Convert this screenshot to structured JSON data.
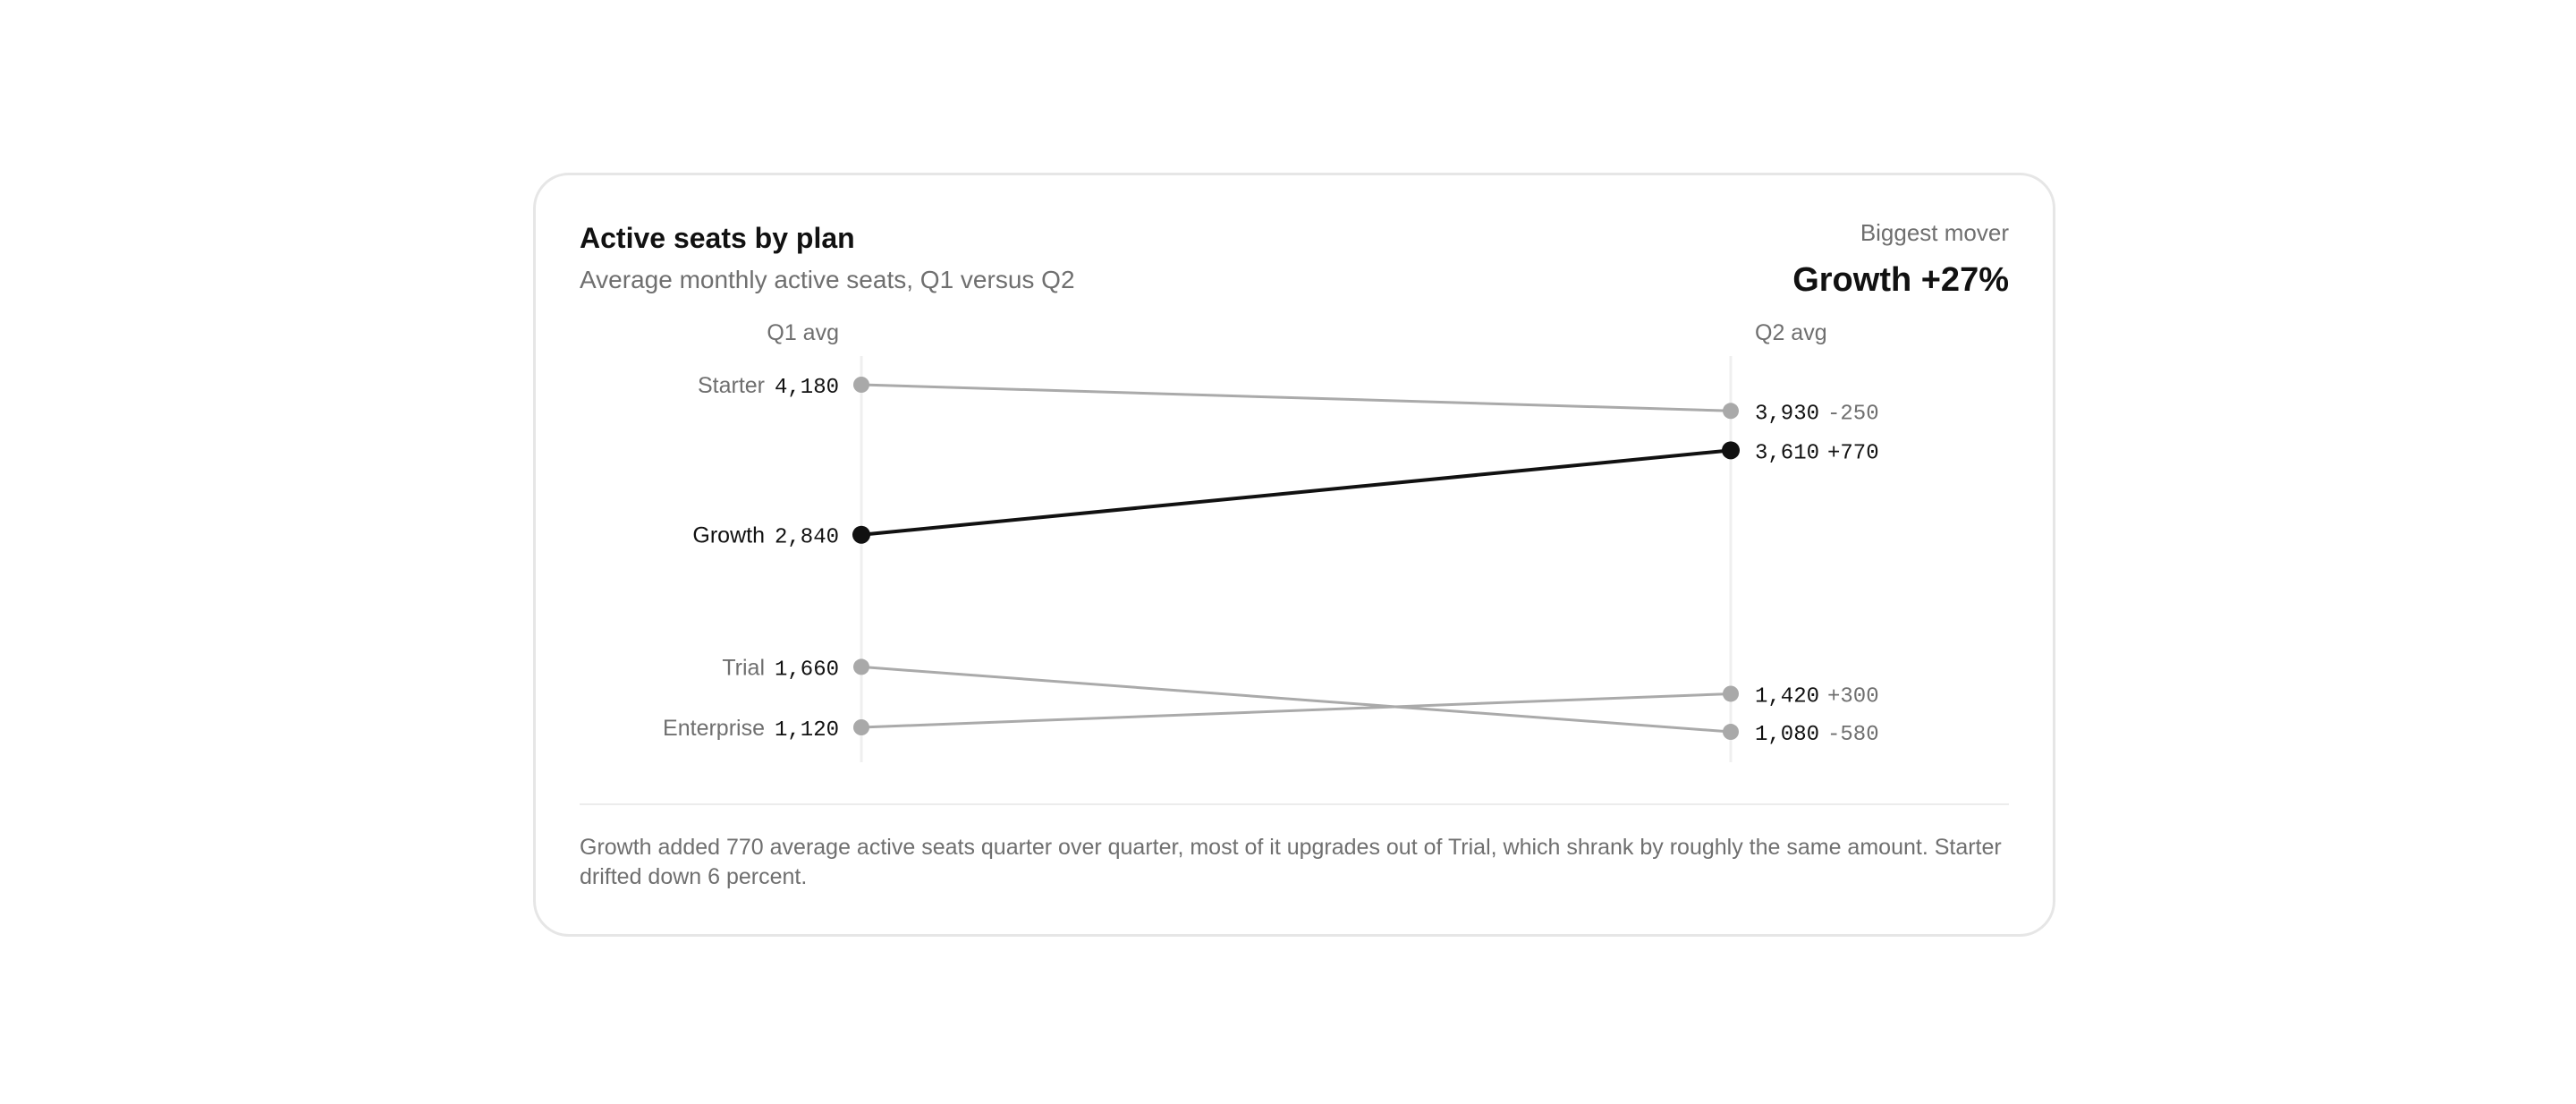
{
  "header": {
    "title": "Active seats by plan",
    "subtitle": "Average monthly active seats, Q1 versus Q2",
    "mover_label": "Biggest mover",
    "mover_value": "Growth +27%"
  },
  "footnote": "Growth added 770 average active seats quarter over quarter, most of it upgrades out of Trial, which shrank by roughly the same amount. Starter drifted down 6 percent.",
  "colors": {
    "highlight": "#111111",
    "muted_line": "#aaaaaa",
    "muted_dot": "#a9a9a9",
    "muted_text": "#6f6f6f",
    "axis": "#efefef"
  },
  "chart_data": {
    "type": "slope",
    "x_labels": [
      "Q1 avg",
      "Q2 avg"
    ],
    "highlight": "Growth",
    "series": [
      {
        "name": "Starter",
        "q1": 4180,
        "q2": 3930,
        "q1_label": "4,180",
        "q2_label": "3,930",
        "delta": "-250"
      },
      {
        "name": "Growth",
        "q1": 2840,
        "q2": 3610,
        "q1_label": "2,840",
        "q2_label": "3,610",
        "delta": "+770"
      },
      {
        "name": "Trial",
        "q1": 1660,
        "q2": 1080,
        "q1_label": "1,660",
        "q2_label": "1,080",
        "delta": "-580"
      },
      {
        "name": "Enterprise",
        "q1": 1120,
        "q2": 1420,
        "q1_label": "1,120",
        "q2_label": "1,420",
        "delta": "+300"
      }
    ]
  }
}
